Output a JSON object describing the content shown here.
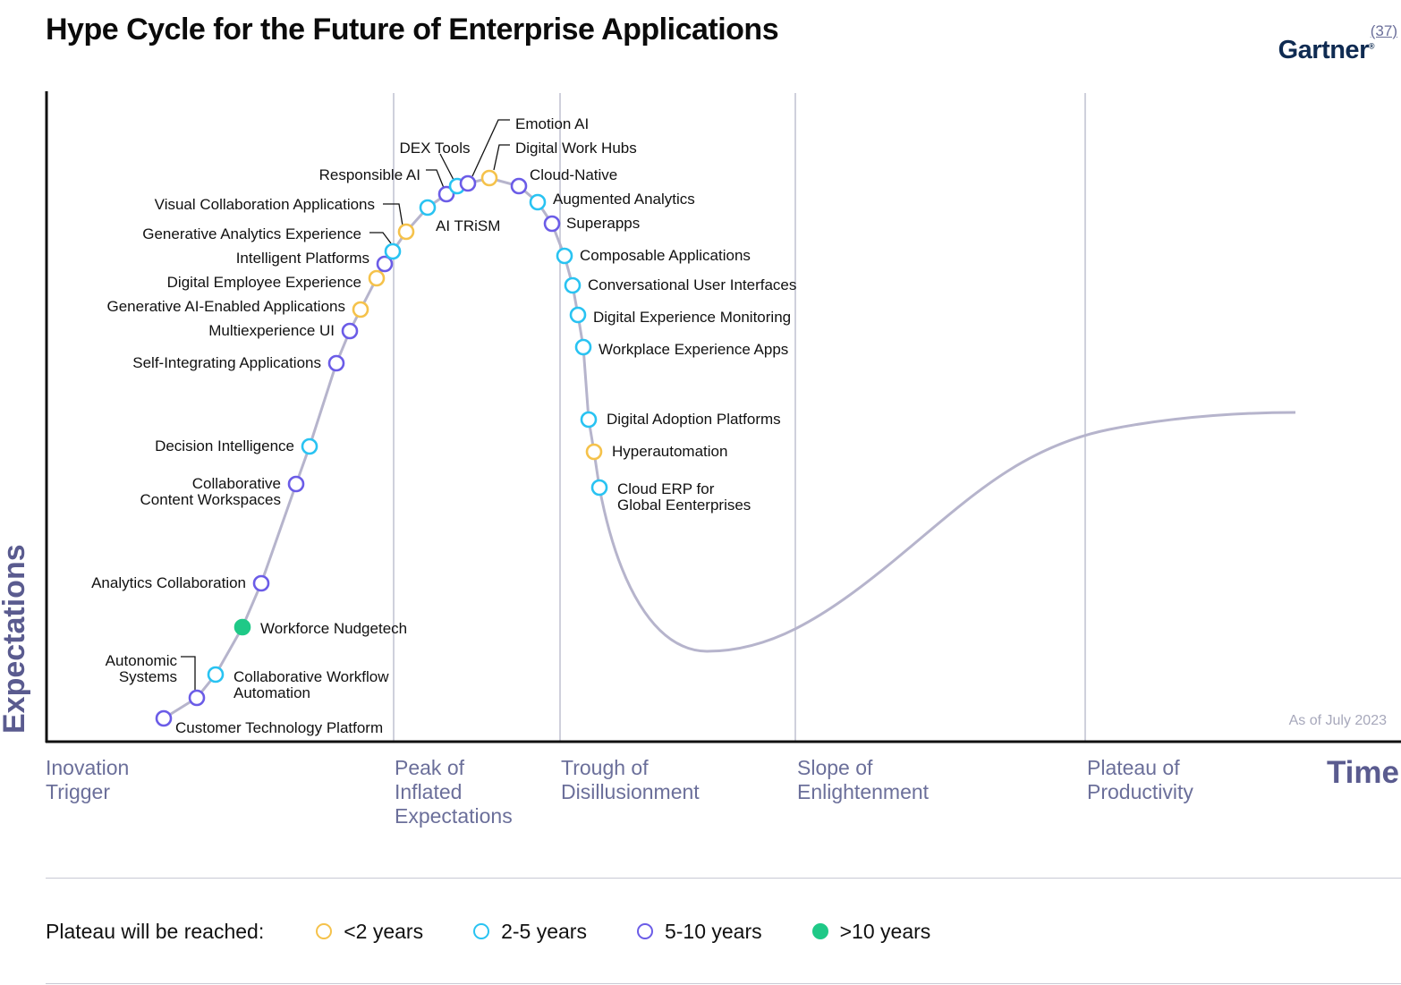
{
  "header": {
    "title": "Hype Cycle for the Future of Enterprise Applications",
    "page_number": "(37)",
    "logo_text": "Gartner",
    "logo_mark": "®"
  },
  "chart_data": {
    "type": "scatter",
    "title": "Hype Cycle for the Future of Enterprise Applications",
    "ylabel": "Expectations",
    "xlabel": "Time",
    "annotation": "As of July 2023",
    "phases": [
      "Inovation\nTrigger",
      "Peak of\nInflated\nExpectations",
      "Trough of\nDisillusionment",
      "Slope of\nEnlightenment",
      "Plateau of\nProductivity"
    ],
    "categories": [
      {
        "key": "lt2",
        "label": "<2 years",
        "color": "#f5c24b",
        "filled": false
      },
      {
        "key": "2to5",
        "label": "2-5 years",
        "color": "#29c3f2",
        "filled": false
      },
      {
        "key": "5to10",
        "label": "5-10 years",
        "color": "#6b5ce7",
        "filled": false
      },
      {
        "key": "gt10",
        "label": ">10 years",
        "color": "#1fc987",
        "filled": true
      }
    ],
    "points": [
      {
        "name": "Customer Technology Platform",
        "cat": "5to10"
      },
      {
        "name": "Autonomic\nSystems",
        "cat": "5to10"
      },
      {
        "name": "Collaborative Workflow\nAutomation",
        "cat": "2to5"
      },
      {
        "name": "Workforce Nudgetech",
        "cat": "gt10"
      },
      {
        "name": "Analytics Collaboration",
        "cat": "5to10"
      },
      {
        "name": "Collaborative\nContent Workspaces",
        "cat": "5to10"
      },
      {
        "name": "Decision Intelligence",
        "cat": "2to5"
      },
      {
        "name": "Self-Integrating Applications",
        "cat": "5to10"
      },
      {
        "name": "Multiexperience UI",
        "cat": "5to10"
      },
      {
        "name": "Generative AI-Enabled Applications",
        "cat": "lt2"
      },
      {
        "name": "Digital Employee Experience",
        "cat": "lt2"
      },
      {
        "name": "Intelligent Platforms",
        "cat": "5to10"
      },
      {
        "name": "Generative Analytics Experience",
        "cat": "2to5"
      },
      {
        "name": "Visual Collaboration Applications",
        "cat": "lt2"
      },
      {
        "name": "AI TRiSM",
        "cat": "2to5"
      },
      {
        "name": "Responsible AI",
        "cat": "5to10"
      },
      {
        "name": "DEX Tools",
        "cat": "2to5"
      },
      {
        "name": "Emotion AI",
        "cat": "5to10"
      },
      {
        "name": "Digital Work Hubs",
        "cat": "lt2"
      },
      {
        "name": "Cloud-Native",
        "cat": "5to10"
      },
      {
        "name": "Augmented Analytics",
        "cat": "2to5"
      },
      {
        "name": "Superapps",
        "cat": "5to10"
      },
      {
        "name": "Composable Applications",
        "cat": "2to5"
      },
      {
        "name": "Conversational User Interfaces",
        "cat": "2to5"
      },
      {
        "name": "Digital Experience Monitoring",
        "cat": "2to5"
      },
      {
        "name": "Workplace Experience Apps",
        "cat": "2to5"
      },
      {
        "name": "Digital Adoption Platforms",
        "cat": "2to5"
      },
      {
        "name": "Hyperautomation",
        "cat": "lt2"
      },
      {
        "name": "Cloud ERP for\nGlobal Eenterprises",
        "cat": "2to5"
      }
    ]
  },
  "legend": {
    "title": "Plateau will be reached:"
  }
}
